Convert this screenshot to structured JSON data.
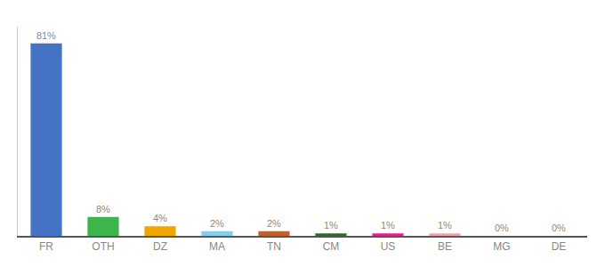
{
  "chart_data": {
    "type": "bar",
    "categories": [
      "FR",
      "OTH",
      "DZ",
      "MA",
      "TN",
      "CM",
      "US",
      "BE",
      "MG",
      "DE"
    ],
    "values": [
      81,
      8,
      4,
      2,
      2,
      1,
      1,
      1,
      0,
      0
    ],
    "value_labels": [
      "81%",
      "8%",
      "4%",
      "2%",
      "2%",
      "1%",
      "1%",
      "1%",
      "0%",
      "0%"
    ],
    "colors": [
      "#4472c4",
      "#3cb54a",
      "#f0a500",
      "#87ceeb",
      "#c0622a",
      "#2d6a2d",
      "#e91e8c",
      "#f4a0b0",
      "#dddddd",
      "#dddddd"
    ],
    "ylim": [
      0,
      88
    ],
    "data_labels": true,
    "tick_labels": "x",
    "grid": false
  }
}
